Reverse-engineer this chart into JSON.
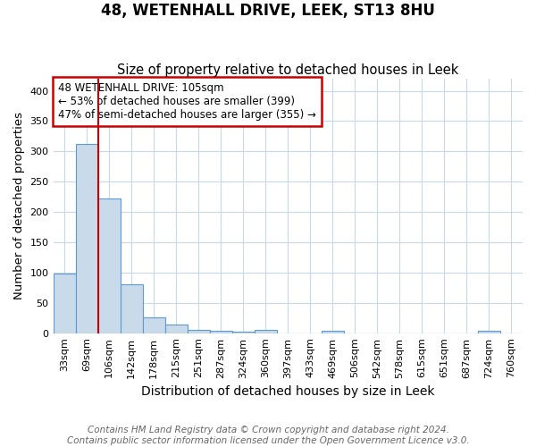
{
  "title": "48, WETENHALL DRIVE, LEEK, ST13 8HU",
  "subtitle": "Size of property relative to detached houses in Leek",
  "xlabel": "Distribution of detached houses by size in Leek",
  "ylabel": "Number of detached properties",
  "bin_labels": [
    "33sqm",
    "69sqm",
    "106sqm",
    "142sqm",
    "178sqm",
    "215sqm",
    "251sqm",
    "287sqm",
    "324sqm",
    "360sqm",
    "397sqm",
    "433sqm",
    "469sqm",
    "506sqm",
    "542sqm",
    "578sqm",
    "615sqm",
    "651sqm",
    "687sqm",
    "724sqm",
    "760sqm"
  ],
  "bar_heights": [
    99,
    312,
    222,
    80,
    26,
    14,
    5,
    4,
    2,
    6,
    0,
    0,
    4,
    0,
    0,
    0,
    0,
    0,
    0,
    4,
    0
  ],
  "bar_color": "#c9daea",
  "bar_edge_color": "#5b9bd5",
  "property_line_x": 1.5,
  "property_line_color": "#cc0000",
  "annotation_line1": "48 WETENHALL DRIVE: 105sqm",
  "annotation_line2": "← 53% of detached houses are smaller (399)",
  "annotation_line3": "47% of semi-detached houses are larger (355) →",
  "annotation_box_color": "#cc0000",
  "ylim": [
    0,
    420
  ],
  "yticks": [
    0,
    50,
    100,
    150,
    200,
    250,
    300,
    350,
    400
  ],
  "footer_line1": "Contains HM Land Registry data © Crown copyright and database right 2024.",
  "footer_line2": "Contains public sector information licensed under the Open Government Licence v3.0.",
  "background_color": "#ffffff",
  "grid_color": "#c8d8e8"
}
